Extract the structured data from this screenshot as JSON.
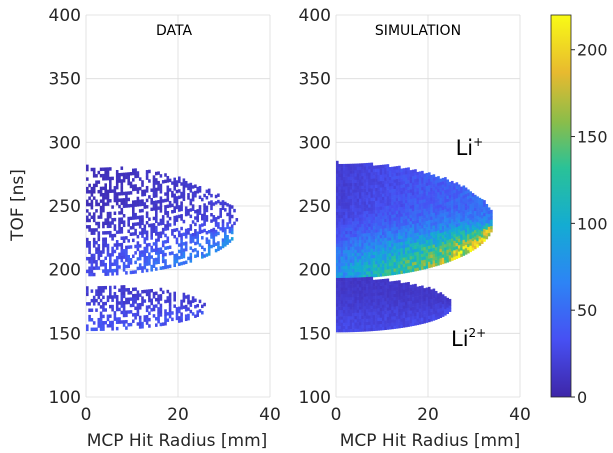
{
  "chart_data": [
    {
      "type": "heatmap",
      "title": "DATA",
      "xlabel": "MCP Hit Radius [mm]",
      "ylabel": "TOF [ns]",
      "xlim": [
        0,
        40
      ],
      "ylim": [
        100,
        400
      ],
      "xticks": [
        "0",
        "20",
        "40"
      ],
      "yticks": [
        "100",
        "150",
        "200",
        "250",
        "300",
        "350",
        "400"
      ],
      "grid": true,
      "bands": [
        {
          "name": "upper",
          "vertex_tof": 197,
          "top_tof": 280,
          "bottom_tof": 195,
          "max_radius": 33,
          "peak_tof": 235,
          "intensity": 0.35,
          "density": 0.5
        },
        {
          "name": "lower",
          "vertex_tof": 152,
          "top_tof": 187,
          "bottom_tof": 152,
          "max_radius": 26,
          "peak_tof": 170,
          "intensity": 0.15,
          "density": 0.5
        }
      ]
    },
    {
      "type": "heatmap",
      "title": "SIMULATION",
      "xlabel": "MCP Hit Radius [mm]",
      "ylabel": "",
      "xlim": [
        0,
        40
      ],
      "ylim": [
        100,
        400
      ],
      "xticks": [
        "0",
        "20",
        "40"
      ],
      "yticks": [
        "100",
        "150",
        "200",
        "250",
        "300",
        "350",
        "400"
      ],
      "grid": true,
      "annotations": [
        {
          "text": "Li",
          "sup": "+",
          "x": 26,
          "y": 290
        },
        {
          "text": "Li",
          "sup": "2+",
          "x": 25,
          "y": 140
        }
      ],
      "bands": [
        {
          "name": "upper",
          "vertex_tof": 197,
          "top_tof": 283,
          "bottom_tof": 193,
          "max_radius": 34,
          "peak_tof": 237,
          "intensity": 0.95,
          "density": 1.0
        },
        {
          "name": "lower",
          "vertex_tof": 151,
          "top_tof": 193,
          "bottom_tof": 151,
          "max_radius": 25,
          "peak_tof": 171,
          "intensity": 0.12,
          "density": 1.0
        }
      ]
    }
  ],
  "colorbar": {
    "colormap": "parula",
    "min": 0,
    "max": 220,
    "ticks": [
      "0",
      "50",
      "100",
      "150",
      "200"
    ],
    "tick_values": [
      0,
      50,
      100,
      150,
      200
    ]
  },
  "colors": {
    "background": "#ffffff",
    "empty_cell": "#ffffff",
    "grid": "#dcdcdc",
    "axis": "#262626"
  }
}
